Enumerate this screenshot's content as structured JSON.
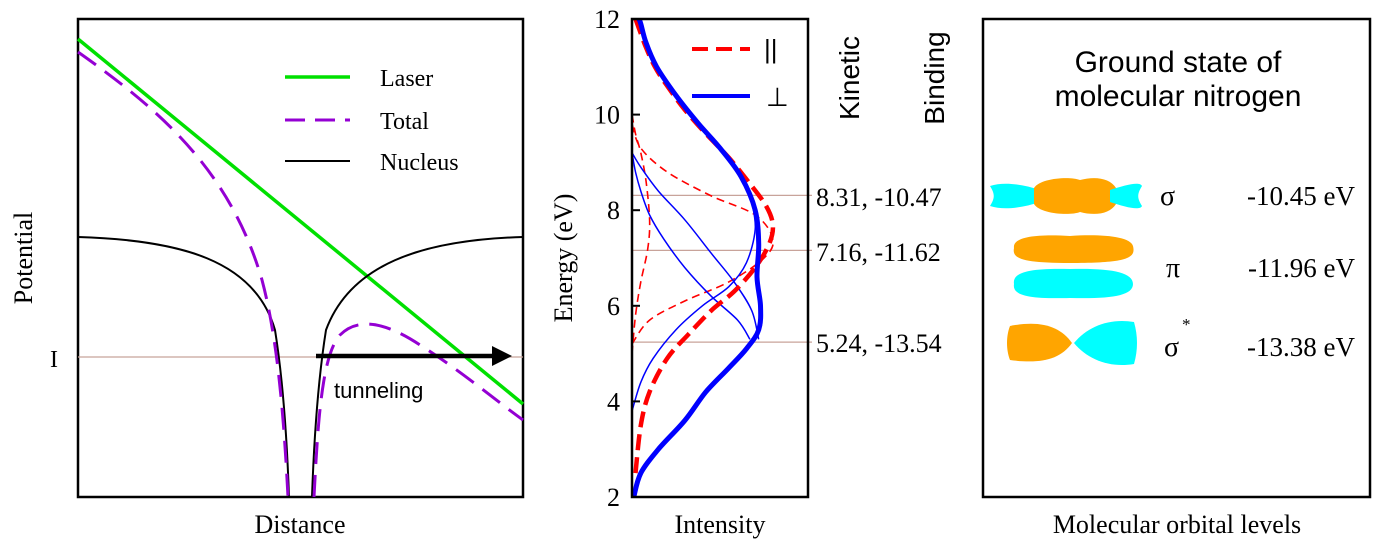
{
  "colors": {
    "laser": "#00e000",
    "total": "#9400d3",
    "nucleus": "#000000",
    "ionization_line": "#c8a39a",
    "parallel": "#ff0000",
    "perpendicular": "#0000ff",
    "orbital_orange": "#ffa500",
    "orbital_cyan": "#00ffff"
  },
  "panel_potential": {
    "xlabel": "Distance",
    "ylabel": "Potential",
    "ionization_label": "I",
    "tunneling_label": "tunneling",
    "legend": [
      {
        "label": "Laser",
        "style": "solid-green"
      },
      {
        "label": "Total",
        "style": "dashed-purple"
      },
      {
        "label": "Nucleus",
        "style": "solid-black"
      }
    ]
  },
  "chart_data": {
    "type": "line",
    "ylabel": "Energy (eV)",
    "xlabel": "Intensity",
    "ylim": [
      2,
      12
    ],
    "yticks": [
      2,
      4,
      6,
      8,
      10,
      12
    ],
    "legend": [
      {
        "symbol": "||",
        "style": "dashed-red"
      },
      {
        "symbol": "⊥",
        "style": "solid-blue"
      }
    ],
    "reference_lines": [
      8.31,
      7.16,
      5.24
    ],
    "series": [
      {
        "name": "||",
        "style": "dashed-red-thick",
        "x": [
          0.02,
          0.05,
          0.1,
          0.2,
          0.32,
          0.45,
          0.58,
          0.7,
          0.78,
          0.8,
          0.76,
          0.66,
          0.55,
          0.42,
          0.3,
          0.2,
          0.13,
          0.08,
          0.04,
          0.02
        ],
        "y": [
          2.5,
          3.5,
          4.2,
          4.9,
          5.4,
          5.9,
          6.3,
          6.8,
          7.3,
          7.7,
          8.1,
          8.6,
          9.1,
          9.6,
          10.1,
          10.6,
          11.0,
          11.4,
          11.8,
          12.0
        ]
      },
      {
        "name": "⊥",
        "style": "solid-blue-thick",
        "x": [
          0.01,
          0.05,
          0.15,
          0.3,
          0.42,
          0.55,
          0.65,
          0.72,
          0.73,
          0.71,
          0.72,
          0.7,
          0.62,
          0.5,
          0.38,
          0.25,
          0.14,
          0.08,
          0.05,
          0.04
        ],
        "y": [
          2.0,
          2.5,
          3.0,
          3.6,
          4.2,
          4.7,
          5.1,
          5.5,
          6.0,
          6.6,
          7.3,
          8.0,
          8.7,
          9.3,
          9.8,
          10.4,
          11.0,
          11.5,
          11.9,
          12.0
        ]
      },
      {
        "name": "|| component 1",
        "style": "dashed-red-thin",
        "x": [
          0.0,
          0.02,
          0.05,
          0.09,
          0.1,
          0.08,
          0.05,
          0.02,
          0.0
        ],
        "y": [
          5.0,
          5.8,
          6.5,
          7.2,
          7.8,
          8.6,
          9.2,
          9.6,
          10.0
        ]
      },
      {
        "name": "|| component 2",
        "style": "dashed-red-thin",
        "x": [
          0.0,
          0.1,
          0.3,
          0.55,
          0.75,
          0.8,
          0.7,
          0.45,
          0.2,
          0.05,
          0.0
        ],
        "y": [
          5.2,
          5.7,
          6.1,
          6.5,
          7.0,
          7.4,
          7.9,
          8.3,
          8.8,
          9.3,
          9.8
        ]
      },
      {
        "name": "⊥ component 1",
        "style": "solid-blue-thin",
        "x": [
          0.0,
          0.05,
          0.12,
          0.25,
          0.4,
          0.55,
          0.65,
          0.7,
          0.68
        ],
        "y": [
          3.8,
          4.4,
          4.9,
          5.5,
          6.0,
          6.4,
          6.9,
          7.6,
          8.2
        ]
      },
      {
        "name": "⊥ component 2",
        "style": "solid-blue-thin",
        "x": [
          0.67,
          0.6,
          0.45,
          0.3,
          0.18,
          0.1,
          0.05,
          0.02,
          0.0
        ],
        "y": [
          5.3,
          5.7,
          6.2,
          6.8,
          7.4,
          7.9,
          8.4,
          8.8,
          9.2
        ]
      },
      {
        "name": "⊥ component 3",
        "style": "solid-blue-thin",
        "x": [
          0.0,
          0.05,
          0.15,
          0.3,
          0.45,
          0.58,
          0.68,
          0.72
        ],
        "y": [
          9.2,
          8.9,
          8.4,
          7.8,
          7.1,
          6.5,
          5.9,
          5.3
        ]
      }
    ]
  },
  "side_labels": {
    "kinetic": "Kinetic",
    "binding": "Binding",
    "pairs": [
      "8.31, -10.47",
      "7.16, -11.62",
      "5.24, -13.54"
    ]
  },
  "panel_orbitals": {
    "title_line1": "Ground state of",
    "title_line2": "molecular nitrogen",
    "xlabel": "Molecular orbital levels",
    "levels": [
      {
        "symbol": "σ",
        "superscript": "",
        "energy": "-10.45 eV"
      },
      {
        "symbol": "π",
        "superscript": "",
        "energy": "-11.96 eV"
      },
      {
        "symbol": "σ",
        "superscript": "*",
        "energy": "-13.38 eV"
      }
    ]
  }
}
